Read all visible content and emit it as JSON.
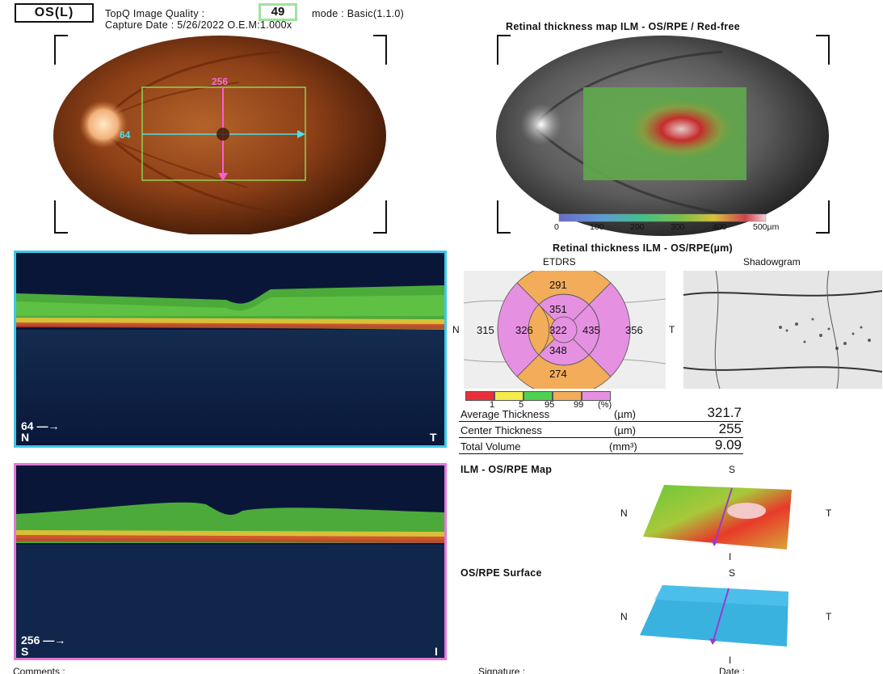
{
  "header": {
    "eye": "OS(L)",
    "quality_label": "TopQ Image Quality :",
    "quality_value": "49",
    "mode": "mode : Basic(1.1.0)",
    "capture": "Capture Date : 5/26/2022   O.E.M:1.000x"
  },
  "fundus": {
    "scan_h_label": "64",
    "scan_v_label": "256"
  },
  "thickness_map": {
    "title": "Retinal thickness map ILM - OS/RPE / Red-free",
    "scale_ticks": [
      "0",
      "100",
      "200",
      "300",
      "400",
      "500µm"
    ]
  },
  "bscan_h": {
    "index": "64",
    "left": "N",
    "right": "T"
  },
  "bscan_v": {
    "index": "256",
    "left": "S",
    "right": "I"
  },
  "etdrs": {
    "title": "Retinal thickness ILM - OS/RPE(µm)",
    "etdrs_label": "ETDRS",
    "shadow_label": "Shadowgram",
    "side_n": "N",
    "side_t": "T",
    "values": {
      "center": "322",
      "inner_sup": "351",
      "inner_inf": "348",
      "inner_nas": "326",
      "inner_tem": "435",
      "outer_sup": "291",
      "outer_inf": "274",
      "outer_nas": "315",
      "outer_tem": "356"
    },
    "legend_ticks": [
      "1",
      "5",
      "95",
      "99",
      "(%)"
    ],
    "colors": {
      "normal": "#f2ac5a",
      "thick": "#e690e2",
      "legend": [
        "#e8303a",
        "#f4ec4a",
        "#4fd04f",
        "#f2ac5a",
        "#e690e2"
      ]
    }
  },
  "stats": {
    "avg_label": "Average Thickness",
    "avg_unit": "(µm)",
    "avg_value": "321.7",
    "center_label": "Center Thickness",
    "center_unit": "(µm)",
    "center_value": "255",
    "vol_label": "Total Volume",
    "vol_unit": "(mm³)",
    "vol_value": "9.09"
  },
  "map3d": {
    "ilm_title": "ILM - OS/RPE Map",
    "osrpe_title": "OS/RPE Surface",
    "s": "S",
    "i": "I",
    "n": "N",
    "t": "T"
  },
  "footer": {
    "comments": "Comments :",
    "signature": "Signature :",
    "date": "Date :"
  }
}
